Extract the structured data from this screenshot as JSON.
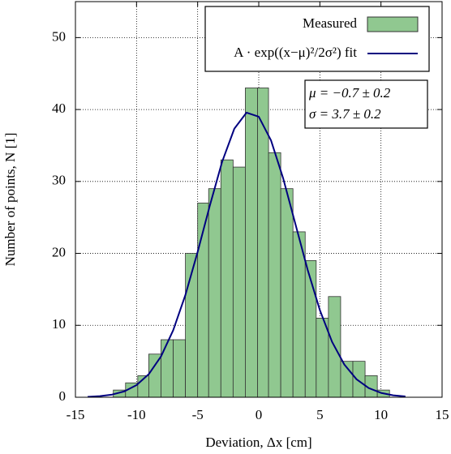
{
  "chart_data": {
    "type": "histogram",
    "xlabel": "Deviation, Δx [cm]",
    "ylabel": "Number of points, N [1]",
    "xlim": [
      -15,
      15
    ],
    "ylim": [
      0,
      55
    ],
    "xticks": [
      -15,
      -10,
      -5,
      0,
      5,
      10,
      15
    ],
    "yticks": [
      0,
      10,
      20,
      30,
      40,
      50
    ],
    "grid": true,
    "legend": "upper right",
    "series": [
      {
        "name": "Measured",
        "type": "histogram",
        "color": "#90c890",
        "bins": [
          -11.9,
          -10.9,
          -9.9,
          -9.0,
          -8.0,
          -7.0,
          -6.0,
          -5.0,
          -4.1,
          -3.1,
          -2.1,
          -1.1,
          -0.1,
          0.8,
          1.8,
          2.8,
          3.8,
          4.7,
          5.7,
          6.7,
          7.7,
          8.7,
          9.7,
          10.7
        ],
        "values": [
          1,
          2,
          3,
          6,
          8,
          8,
          20,
          27,
          29,
          33,
          32,
          43,
          43,
          34,
          29,
          23,
          19,
          11,
          14,
          5,
          5,
          3,
          1
        ]
      },
      {
        "name": "A · exp((x−μ)²/2σ²) fit",
        "type": "line",
        "color": "#000080",
        "x": [
          -14,
          -13,
          -12,
          -11,
          -10,
          -9,
          -8,
          -7,
          -6,
          -5,
          -4,
          -3,
          -2,
          -1,
          0,
          1,
          2,
          3,
          4,
          5,
          6,
          7,
          8,
          9,
          10,
          11,
          12
        ],
        "values": [
          0.06,
          0.16,
          0.37,
          0.82,
          1.69,
          3.21,
          5.67,
          9.32,
          14.23,
          20.21,
          26.67,
          32.72,
          37.33,
          39.57,
          39.0,
          35.72,
          30.42,
          24.08,
          17.72,
          12.12,
          7.7,
          4.55,
          2.5,
          1.28,
          0.61,
          0.27,
          0.11
        ]
      }
    ],
    "annotations": [
      "μ = −0.7 ± 0.2",
      "σ = 3.7 ± 0.2"
    ]
  }
}
